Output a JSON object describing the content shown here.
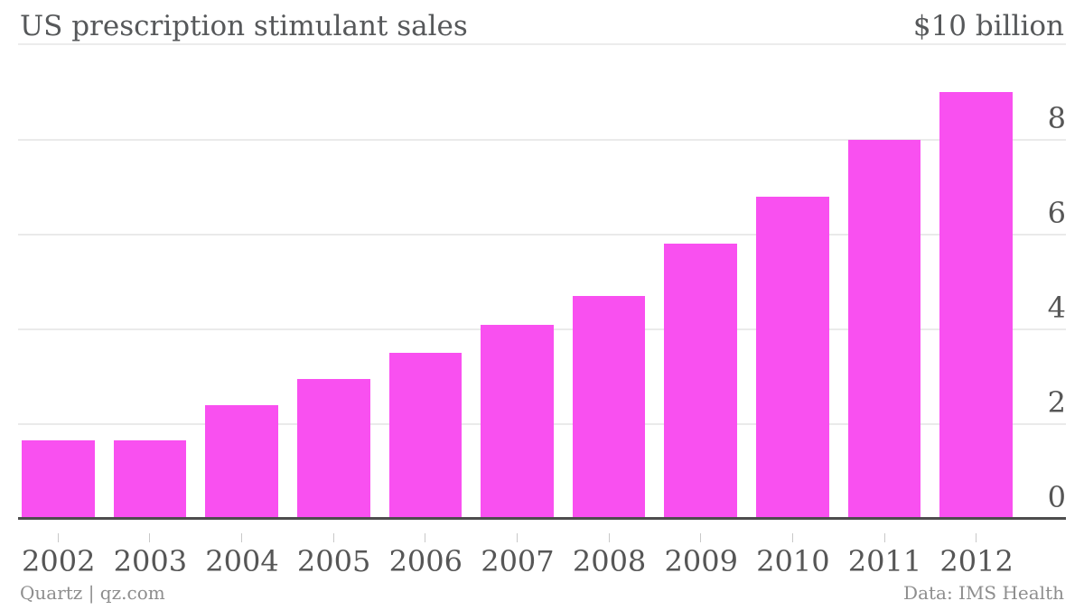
{
  "header": {
    "title": "US prescription stimulant sales",
    "unit_label": "$10 billion"
  },
  "footer": {
    "source": "Quartz | qz.com",
    "credit": "Data: IMS Health"
  },
  "colors": {
    "bar": "#f950f0",
    "axis_line": "#4d4d4d",
    "gridline": "#eaeaea",
    "tick": "#c8c8c8",
    "axis_text": "#565656",
    "title_text": "#56585a",
    "footer_text": "#8e8e8e",
    "background": "#ffffff"
  },
  "chart_data": {
    "type": "bar",
    "title": "US prescription stimulant sales",
    "ylabel": "$10 billion",
    "xlabel": "",
    "categories": [
      "2002",
      "2003",
      "2004",
      "2005",
      "2006",
      "2007",
      "2008",
      "2009",
      "2010",
      "2011",
      "2012"
    ],
    "values": [
      1.65,
      1.65,
      2.4,
      2.95,
      3.5,
      4.1,
      4.7,
      5.8,
      6.8,
      8.0,
      9.0
    ],
    "y_ticks": [
      0,
      2,
      4,
      6,
      8
    ],
    "ylim": [
      0,
      9.8
    ],
    "y_axis_position": "right",
    "grid": true,
    "legend": false,
    "source": "Data: IMS Health"
  }
}
